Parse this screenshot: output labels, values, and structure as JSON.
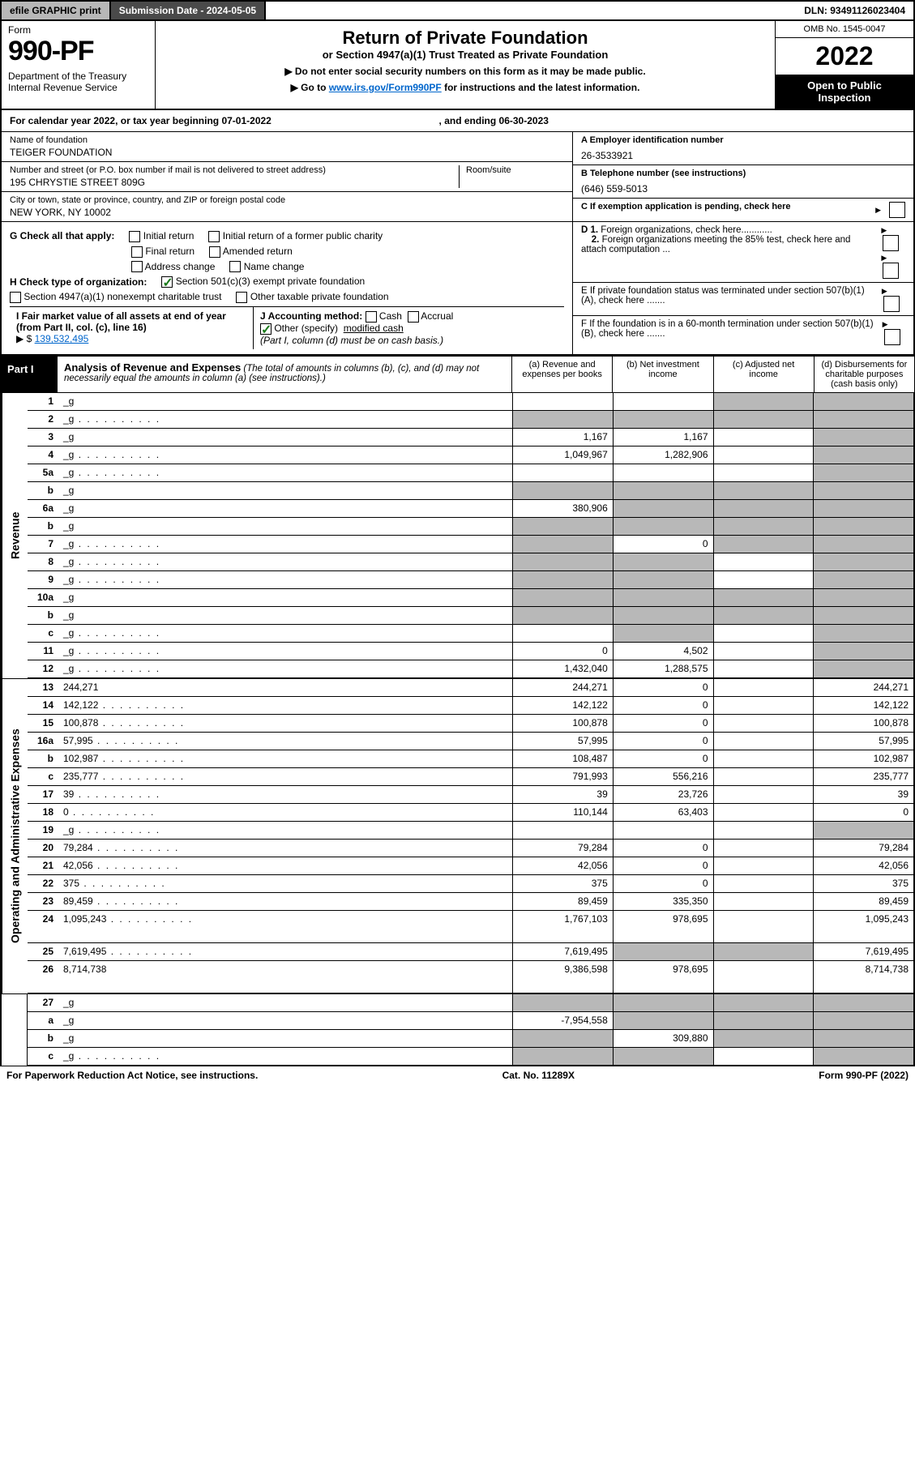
{
  "top": {
    "efile": "efile GRAPHIC print",
    "sub_label": "Submission Date - 2024-05-05",
    "dln": "DLN: 93491126023404"
  },
  "header": {
    "form_word": "Form",
    "form_no": "990-PF",
    "dept": "Department of the Treasury",
    "irs": "Internal Revenue Service",
    "title": "Return of Private Foundation",
    "subtitle": "or Section 4947(a)(1) Trust Treated as Private Foundation",
    "note1": "▶ Do not enter social security numbers on this form as it may be made public.",
    "note2_pre": "▶ Go to ",
    "note2_link": "www.irs.gov/Form990PF",
    "note2_post": " for instructions and the latest information.",
    "omb": "OMB No. 1545-0047",
    "year": "2022",
    "open1": "Open to Public",
    "open2": "Inspection"
  },
  "cal": {
    "pre": "For calendar year 2022, or tax year beginning ",
    "begin": "07-01-2022",
    "mid": " , and ending ",
    "end": "06-30-2023"
  },
  "entity": {
    "name_lbl": "Name of foundation",
    "name": "TEIGER FOUNDATION",
    "addr_lbl": "Number and street (or P.O. box number if mail is not delivered to street address)",
    "room_lbl": "Room/suite",
    "addr": "195 CHRYSTIE STREET 809G",
    "city_lbl": "City or town, state or province, country, and ZIP or foreign postal code",
    "city": "NEW YORK, NY  10002",
    "ein_lbl": "A Employer identification number",
    "ein": "26-3533921",
    "phone_lbl": "B Telephone number (see instructions)",
    "phone": "(646) 559-5013",
    "c_lbl": "C If exemption application is pending, check here"
  },
  "checks": {
    "g_lbl": "G Check all that apply:",
    "g": [
      "Initial return",
      "Initial return of a former public charity",
      "Final return",
      "Amended return",
      "Address change",
      "Name change"
    ],
    "h_lbl": "H Check type of organization:",
    "h1": "Section 501(c)(3) exempt private foundation",
    "h2": "Section 4947(a)(1) nonexempt charitable trust",
    "h3": "Other taxable private foundation",
    "i_lbl": "I Fair market value of all assets at end of year (from Part II, col. (c), line 16)",
    "i_arrow": "▶ $",
    "i_val": "139,532,495",
    "j_lbl": "J Accounting method:",
    "j_cash": "Cash",
    "j_accr": "Accrual",
    "j_other": "Other (specify)",
    "j_other_val": "modified cash",
    "j_note": "(Part I, column (d) must be on cash basis.)",
    "d1": "D 1. Foreign organizations, check here............",
    "d2": "2. Foreign organizations meeting the 85% test, check here and attach computation ...",
    "e": "E  If private foundation status was terminated under section 507(b)(1)(A), check here .......",
    "f": "F  If the foundation is in a 60-month termination under section 507(b)(1)(B), check here ......."
  },
  "part1": {
    "label": "Part I",
    "title": "Analysis of Revenue and Expenses",
    "title_note": " (The total of amounts in columns (b), (c), and (d) may not necessarily equal the amounts in column (a) (see instructions).)",
    "cols": {
      "a": "(a)   Revenue and expenses per books",
      "b": "(b)   Net investment income",
      "c": "(c)   Adjusted net income",
      "d": "(d)   Disbursements for charitable purposes (cash basis only)"
    }
  },
  "sides": {
    "rev": "Revenue",
    "exp": "Operating and Administrative Expenses"
  },
  "rows": [
    {
      "n": "1",
      "d": "_g",
      "a": "",
      "b": "",
      "c": "_g"
    },
    {
      "n": "2",
      "d": "_g",
      "dots": 1,
      "a": "_g",
      "b": "_g",
      "c": "_g"
    },
    {
      "n": "3",
      "d": "_g",
      "a": "1,167",
      "b": "1,167",
      "c": ""
    },
    {
      "n": "4",
      "d": "_g",
      "dots": 1,
      "a": "1,049,967",
      "b": "1,282,906",
      "c": ""
    },
    {
      "n": "5a",
      "d": "_g",
      "dots": 1,
      "a": "",
      "b": "",
      "c": ""
    },
    {
      "n": "b",
      "d": "_g",
      "a": "_g",
      "b": "_g",
      "c": "_g"
    },
    {
      "n": "6a",
      "d": "_g",
      "a": "380,906",
      "b": "_g",
      "c": "_g"
    },
    {
      "n": "b",
      "d": "_g",
      "a": "_g",
      "b": "_g",
      "c": "_g"
    },
    {
      "n": "7",
      "d": "_g",
      "dots": 1,
      "a": "_g",
      "b": "0",
      "c": "_g"
    },
    {
      "n": "8",
      "d": "_g",
      "dots": 1,
      "a": "_g",
      "b": "_g",
      "c": ""
    },
    {
      "n": "9",
      "d": "_g",
      "dots": 1,
      "a": "_g",
      "b": "_g",
      "c": ""
    },
    {
      "n": "10a",
      "d": "_g",
      "a": "_g",
      "b": "_g",
      "c": "_g"
    },
    {
      "n": "b",
      "d": "_g",
      "a": "_g",
      "b": "_g",
      "c": "_g"
    },
    {
      "n": "c",
      "d": "_g",
      "dots": 1,
      "a": "",
      "b": "_g",
      "c": ""
    },
    {
      "n": "11",
      "d": "_g",
      "dots": 1,
      "a": "0",
      "b": "4,502",
      "c": ""
    },
    {
      "n": "12",
      "d": "_g",
      "dots": 1,
      "a": "1,432,040",
      "b": "1,288,575",
      "c": "",
      "bold": 1
    }
  ],
  "exp_rows": [
    {
      "n": "13",
      "d": "244,271",
      "a": "244,271",
      "b": "0",
      "c": ""
    },
    {
      "n": "14",
      "d": "142,122",
      "dots": 1,
      "a": "142,122",
      "b": "0",
      "c": ""
    },
    {
      "n": "15",
      "d": "100,878",
      "dots": 1,
      "a": "100,878",
      "b": "0",
      "c": ""
    },
    {
      "n": "16a",
      "d": "57,995",
      "dots": 1,
      "a": "57,995",
      "b": "0",
      "c": ""
    },
    {
      "n": "b",
      "d": "102,987",
      "dots": 1,
      "a": "108,487",
      "b": "0",
      "c": ""
    },
    {
      "n": "c",
      "d": "235,777",
      "dots": 1,
      "a": "791,993",
      "b": "556,216",
      "c": ""
    },
    {
      "n": "17",
      "d": "39",
      "dots": 1,
      "a": "39",
      "b": "23,726",
      "c": ""
    },
    {
      "n": "18",
      "d": "0",
      "dots": 1,
      "a": "110,144",
      "b": "63,403",
      "c": ""
    },
    {
      "n": "19",
      "d": "_g",
      "dots": 1,
      "a": "",
      "b": "",
      "c": ""
    },
    {
      "n": "20",
      "d": "79,284",
      "dots": 1,
      "a": "79,284",
      "b": "0",
      "c": ""
    },
    {
      "n": "21",
      "d": "42,056",
      "dots": 1,
      "a": "42,056",
      "b": "0",
      "c": ""
    },
    {
      "n": "22",
      "d": "375",
      "dots": 1,
      "a": "375",
      "b": "0",
      "c": ""
    },
    {
      "n": "23",
      "d": "89,459",
      "dots": 1,
      "a": "89,459",
      "b": "335,350",
      "c": ""
    },
    {
      "n": "24",
      "d": "1,095,243",
      "dots": 1,
      "a": "1,767,103",
      "b": "978,695",
      "c": "",
      "tall": 1
    },
    {
      "n": "25",
      "d": "7,619,495",
      "dots": 1,
      "a": "7,619,495",
      "b": "_g",
      "c": "_g"
    },
    {
      "n": "26",
      "d": "8,714,738",
      "a": "9,386,598",
      "b": "978,695",
      "c": "",
      "tall": 1
    }
  ],
  "bottom_rows": [
    {
      "n": "27",
      "d": "_g",
      "a": "_g",
      "b": "_g",
      "c": "_g"
    },
    {
      "n": "a",
      "d": "_g",
      "a": "-7,954,558",
      "b": "_g",
      "c": "_g"
    },
    {
      "n": "b",
      "d": "_g",
      "a": "_g",
      "b": "309,880",
      "c": "_g"
    },
    {
      "n": "c",
      "d": "_g",
      "dots": 1,
      "a": "_g",
      "b": "_g",
      "c": ""
    }
  ],
  "footer": {
    "left": "For Paperwork Reduction Act Notice, see instructions.",
    "mid": "Cat. No. 11289X",
    "right": "Form 990-PF (2022)"
  },
  "colors": {
    "grey": "#b8b8b8",
    "darkgrey": "#4a4a4a",
    "link": "#0066cc",
    "check": "#1a7a1a"
  }
}
